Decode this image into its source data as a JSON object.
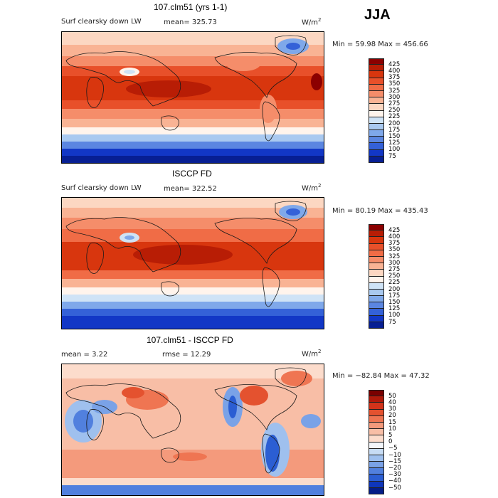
{
  "season": "JJA",
  "units_label": "W/m",
  "units_sup": "2",
  "panels": [
    {
      "title": "107.clm51 (yrs 1-1)",
      "left_label": "Surf clearsky down LW",
      "stat_label": "mean= 325.73",
      "minmax": "Min =  59.98 Max = 456.66",
      "type": "abs"
    },
    {
      "title": "ISCCP FD",
      "left_label": "Surf clearsky down LW",
      "stat_label": "mean= 322.52",
      "minmax": "Min =  80.19 Max = 435.43",
      "type": "abs"
    },
    {
      "title": "107.clm51 - ISCCP FD",
      "left_label": "mean =    3.22",
      "stat_label": "rmse =   12.29",
      "minmax": "Min = −82.84 Max =   47.32",
      "type": "diff"
    }
  ],
  "colorbars": {
    "abs": {
      "labels": [
        "425",
        "400",
        "375",
        "350",
        "325",
        "300",
        "275",
        "250",
        "225",
        "200",
        "175",
        "150",
        "125",
        "100",
        "75"
      ],
      "colors": [
        "#8b0000",
        "#b81d05",
        "#d8360e",
        "#e8502a",
        "#f06c46",
        "#f58d6a",
        "#f9b394",
        "#fcd7c2",
        "#fff4ec",
        "#cfe3f6",
        "#a9c9f0",
        "#7fa8ea",
        "#5b86e1",
        "#3461d8",
        "#1237c6",
        "#071f93"
      ]
    },
    "diff": {
      "labels": [
        "50",
        "40",
        "30",
        "20",
        "15",
        "10",
        "5",
        "0",
        "−5",
        "−10",
        "−15",
        "−20",
        "−30",
        "−40",
        "−50"
      ],
      "colors": [
        "#7a0000",
        "#b0190a",
        "#d2331a",
        "#e4522f",
        "#ef7552",
        "#f49a7c",
        "#f8bea6",
        "#fcdccc",
        "#f3f6fb",
        "#c7dcf4",
        "#9fc0ee",
        "#7aa2e7",
        "#5180de",
        "#2b5ed3",
        "#0e36bb",
        "#051d87"
      ]
    }
  }
}
